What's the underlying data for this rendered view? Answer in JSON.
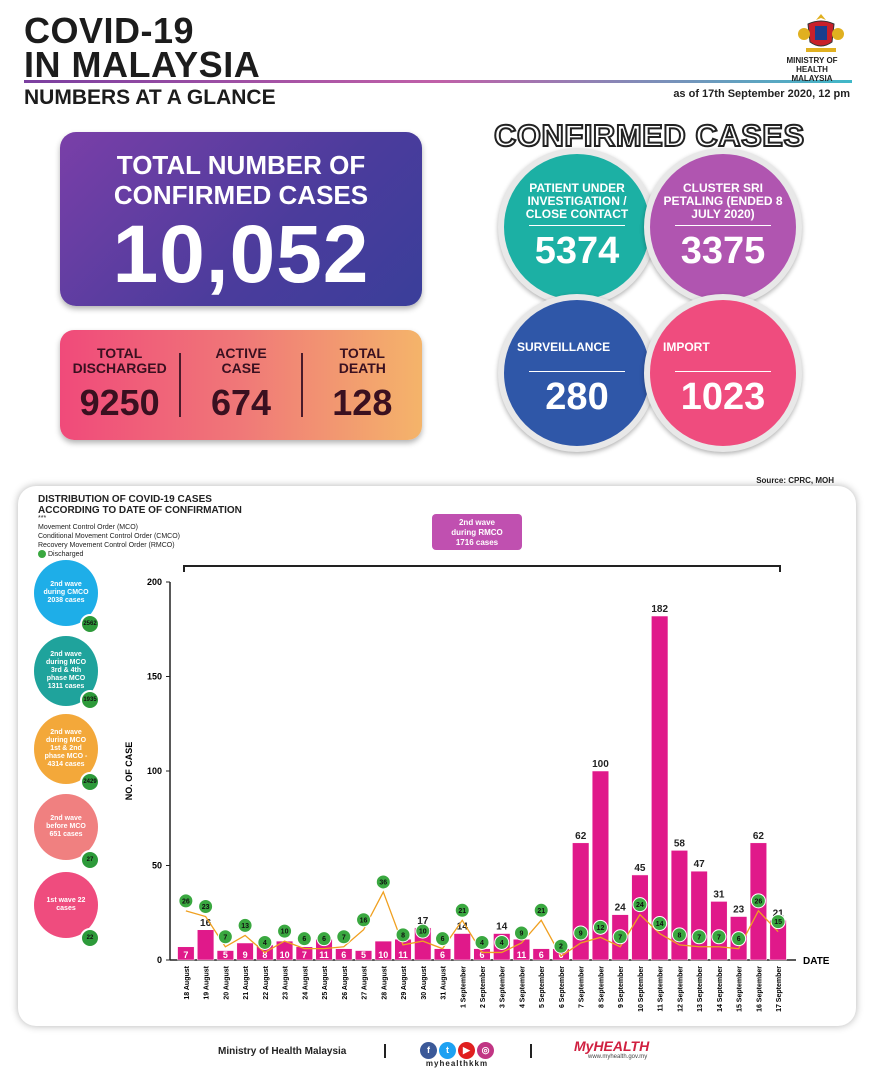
{
  "header": {
    "title_line1": "COVID-19",
    "title_line2": "IN MALAYSIA",
    "subtitle": "NUMBERS AT A GLANCE",
    "as_of": "as of 17th September 2020, 12 pm",
    "ministry_line1": "MINISTRY OF HEALTH",
    "ministry_line2": "MALAYSIA"
  },
  "total": {
    "label_line1": "TOTAL NUMBER OF",
    "label_line2": "CONFIRMED CASES",
    "value": "10,052"
  },
  "stats": [
    {
      "l1": "TOTAL",
      "l2": "DISCHARGED",
      "value": "9250"
    },
    {
      "l1": "ACTIVE",
      "l2": "CASE",
      "value": "674"
    },
    {
      "l1": "TOTAL",
      "l2": "DEATH",
      "value": "128"
    }
  ],
  "confirmed": {
    "heading": "CONFIRMED CASES",
    "circles": [
      {
        "label": "PATIENT UNDER INVESTIGATION / CLOSE CONTACT",
        "value": "5374",
        "color": "#1cb0a4"
      },
      {
        "label": "CLUSTER SRI PETALING (ENDED 8 JULY 2020)",
        "value": "3375",
        "color": "#b055b0"
      },
      {
        "label": "SURVEILLANCE",
        "value": "280",
        "color": "#2f57a8"
      },
      {
        "label": "IMPORT",
        "value": "1023",
        "color": "#ef4c7e"
      }
    ]
  },
  "source": "Source: CPRC, MOH",
  "panel": {
    "title_line1": "DISTRIBUTION OF COVID-19 CASES",
    "title_line2": "ACCORDING TO DATE OF CONFIRMATION",
    "legend_stars": "***",
    "legend_1": "Movement Control Order (MCO)",
    "legend_2": "Conditional Movement Control Order (CMCO)",
    "legend_3": "Recovery Movement Control Order (RMCO)",
    "legend_4": "Discharged",
    "rmco_box": {
      "l1": "2nd wave",
      "l2": "during RMCO",
      "l3": "1716 cases"
    },
    "waves": [
      {
        "label": "2nd wave during CMCO 2038 cases",
        "discharged": "2562",
        "color": "#1eaee8"
      },
      {
        "label": "2nd wave during MCO 3rd & 4th phase MCO 1311 cases",
        "discharged": "1935",
        "color": "#1fa39c"
      },
      {
        "label": "2nd wave during MCO 1st & 2nd phase MCO - 4314 cases",
        "discharged": "2429",
        "color": "#f3a83a"
      },
      {
        "label": "2nd wave before MCO 651 cases",
        "discharged": "27",
        "color": "#f08080"
      },
      {
        "label": "1st wave 22 cases",
        "discharged": "22",
        "color": "#ef4c7e"
      }
    ]
  },
  "chart_data": {
    "type": "bar",
    "ylabel": "NO. OF CASE",
    "xlabel": "DATE",
    "ylim": [
      0,
      200
    ],
    "yticks": [
      0,
      50,
      100,
      150,
      200
    ],
    "categories": [
      "18 August",
      "19 August",
      "20 August",
      "21 August",
      "22 August",
      "23 August",
      "24 August",
      "25 August",
      "26 August",
      "27 August",
      "28 August",
      "29 August",
      "30 August",
      "31 August",
      "1 September",
      "2 September",
      "3 September",
      "4 September",
      "5 September",
      "6 September",
      "7 September",
      "8 September",
      "9 September",
      "10 September",
      "11 September",
      "12 September",
      "13 September",
      "14 September",
      "15 September",
      "16 September",
      "17 September"
    ],
    "series": [
      {
        "values": [
          7,
          16,
          5,
          9,
          8,
          10,
          7,
          11,
          6,
          5,
          10,
          11,
          17,
          6,
          14,
          6,
          14,
          11,
          6,
          6,
          62,
          100,
          24,
          45,
          182,
          58,
          47,
          31,
          23,
          62,
          21
        ],
        "color": "#e0198a"
      },
      {
        "name": "Discharged",
        "values": [
          26,
          23,
          7,
          13,
          4,
          10,
          6,
          6,
          7,
          16,
          36,
          8,
          10,
          6,
          21,
          4,
          4,
          9,
          21,
          2,
          9,
          12,
          7,
          24,
          14,
          8,
          7,
          7,
          6,
          26,
          15
        ],
        "color": "#f0a020"
      }
    ]
  },
  "footer": {
    "ministry": "Ministry of Health Malaysia",
    "handle": "myhealthkkm",
    "brand": "MyHEALTH",
    "brand_sub": "www.myhealth.gov.my"
  }
}
